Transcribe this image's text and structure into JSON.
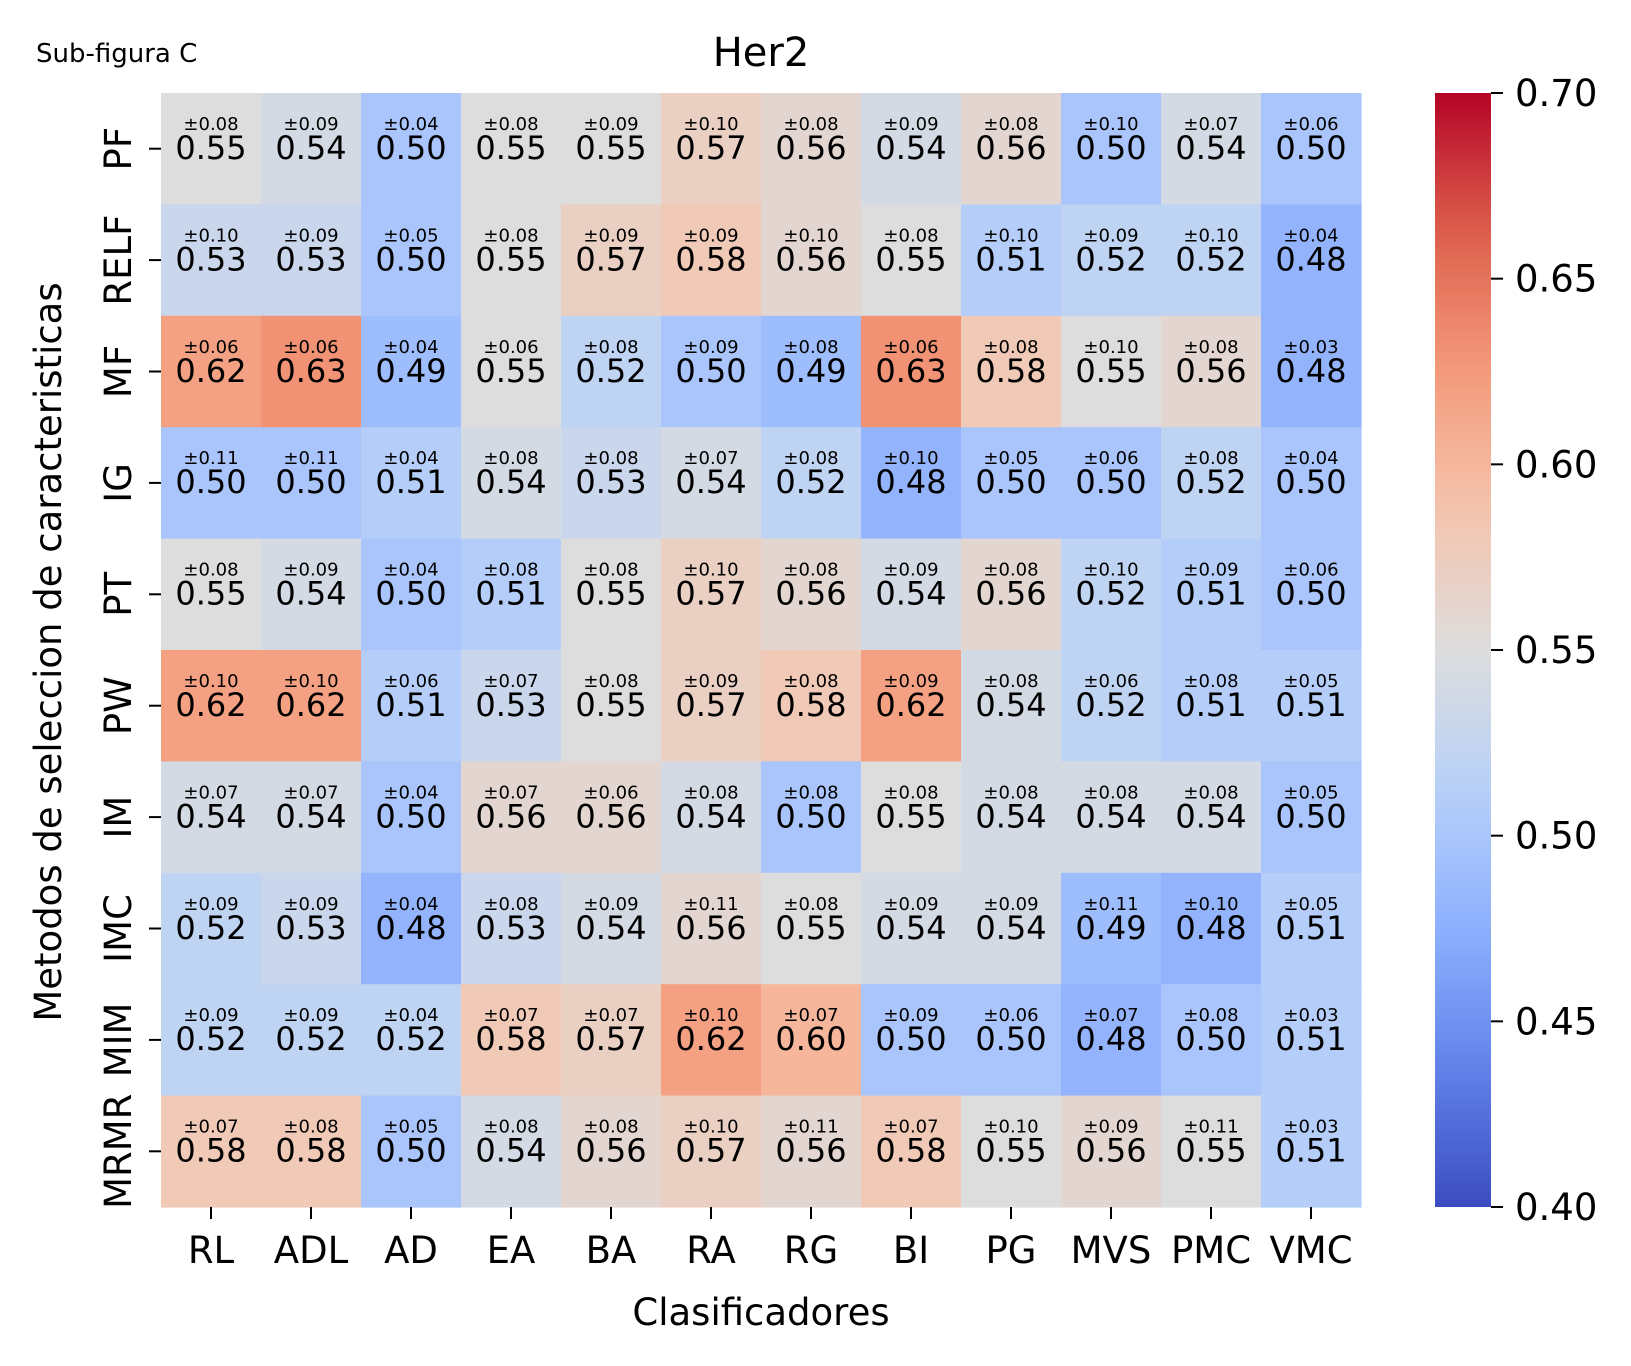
{
  "subfigure_label": "Sub-figura C",
  "chart_data": {
    "type": "heatmap",
    "title": "Her2",
    "xlabel": "Clasificadores",
    "ylabel": "Metodos de seleccion de caracteristicas",
    "x_categories": [
      "RL",
      "ADL",
      "AD",
      "EA",
      "BA",
      "RA",
      "RG",
      "BI",
      "PG",
      "MVS",
      "PMC",
      "VMC"
    ],
    "y_categories": [
      "PF",
      "RELF",
      "MF",
      "IG",
      "PT",
      "PW",
      "IM",
      "IMC",
      "MIM",
      "MRMR"
    ],
    "values": [
      [
        0.55,
        0.54,
        0.5,
        0.55,
        0.55,
        0.57,
        0.56,
        0.54,
        0.56,
        0.5,
        0.54,
        0.5
      ],
      [
        0.53,
        0.53,
        0.5,
        0.55,
        0.57,
        0.58,
        0.56,
        0.55,
        0.51,
        0.52,
        0.52,
        0.48
      ],
      [
        0.62,
        0.63,
        0.49,
        0.55,
        0.52,
        0.5,
        0.49,
        0.63,
        0.58,
        0.55,
        0.56,
        0.48
      ],
      [
        0.5,
        0.5,
        0.51,
        0.54,
        0.53,
        0.54,
        0.52,
        0.48,
        0.5,
        0.5,
        0.52,
        0.5
      ],
      [
        0.55,
        0.54,
        0.5,
        0.51,
        0.55,
        0.57,
        0.56,
        0.54,
        0.56,
        0.52,
        0.51,
        0.5
      ],
      [
        0.62,
        0.62,
        0.51,
        0.53,
        0.55,
        0.57,
        0.58,
        0.62,
        0.54,
        0.52,
        0.51,
        0.51
      ],
      [
        0.54,
        0.54,
        0.5,
        0.56,
        0.56,
        0.54,
        0.5,
        0.55,
        0.54,
        0.54,
        0.54,
        0.5
      ],
      [
        0.52,
        0.53,
        0.48,
        0.53,
        0.54,
        0.56,
        0.55,
        0.54,
        0.54,
        0.49,
        0.48,
        0.51
      ],
      [
        0.52,
        0.52,
        0.52,
        0.58,
        0.57,
        0.62,
        0.6,
        0.5,
        0.5,
        0.48,
        0.5,
        0.51
      ],
      [
        0.58,
        0.58,
        0.5,
        0.54,
        0.56,
        0.57,
        0.56,
        0.58,
        0.55,
        0.56,
        0.55,
        0.51
      ]
    ],
    "std": [
      [
        0.08,
        0.09,
        0.04,
        0.08,
        0.09,
        0.1,
        0.08,
        0.09,
        0.08,
        0.1,
        0.07,
        0.06
      ],
      [
        0.1,
        0.09,
        0.05,
        0.08,
        0.09,
        0.09,
        0.1,
        0.08,
        0.1,
        0.09,
        0.1,
        0.04
      ],
      [
        0.06,
        0.06,
        0.04,
        0.06,
        0.08,
        0.09,
        0.08,
        0.06,
        0.08,
        0.1,
        0.08,
        0.03
      ],
      [
        0.11,
        0.11,
        0.04,
        0.08,
        0.08,
        0.07,
        0.08,
        0.1,
        0.05,
        0.06,
        0.08,
        0.04
      ],
      [
        0.08,
        0.09,
        0.04,
        0.08,
        0.08,
        0.1,
        0.08,
        0.09,
        0.08,
        0.1,
        0.09,
        0.06
      ],
      [
        0.1,
        0.1,
        0.06,
        0.07,
        0.08,
        0.09,
        0.08,
        0.09,
        0.08,
        0.06,
        0.08,
        0.05
      ],
      [
        0.07,
        0.07,
        0.04,
        0.07,
        0.06,
        0.08,
        0.08,
        0.08,
        0.08,
        0.08,
        0.08,
        0.05
      ],
      [
        0.09,
        0.09,
        0.04,
        0.08,
        0.09,
        0.11,
        0.08,
        0.09,
        0.09,
        0.11,
        0.1,
        0.05
      ],
      [
        0.09,
        0.09,
        0.04,
        0.07,
        0.07,
        0.1,
        0.07,
        0.09,
        0.06,
        0.07,
        0.08,
        0.03
      ],
      [
        0.07,
        0.08,
        0.05,
        0.08,
        0.08,
        0.1,
        0.11,
        0.07,
        0.1,
        0.09,
        0.11,
        0.03
      ]
    ],
    "colormap": "coolwarm",
    "color_range": [
      0.4,
      0.7
    ],
    "colorbar_ticks": [
      "0.40",
      "0.45",
      "0.50",
      "0.55",
      "0.60",
      "0.65",
      "0.70"
    ],
    "colorbar_position": "right",
    "grid": false
  }
}
